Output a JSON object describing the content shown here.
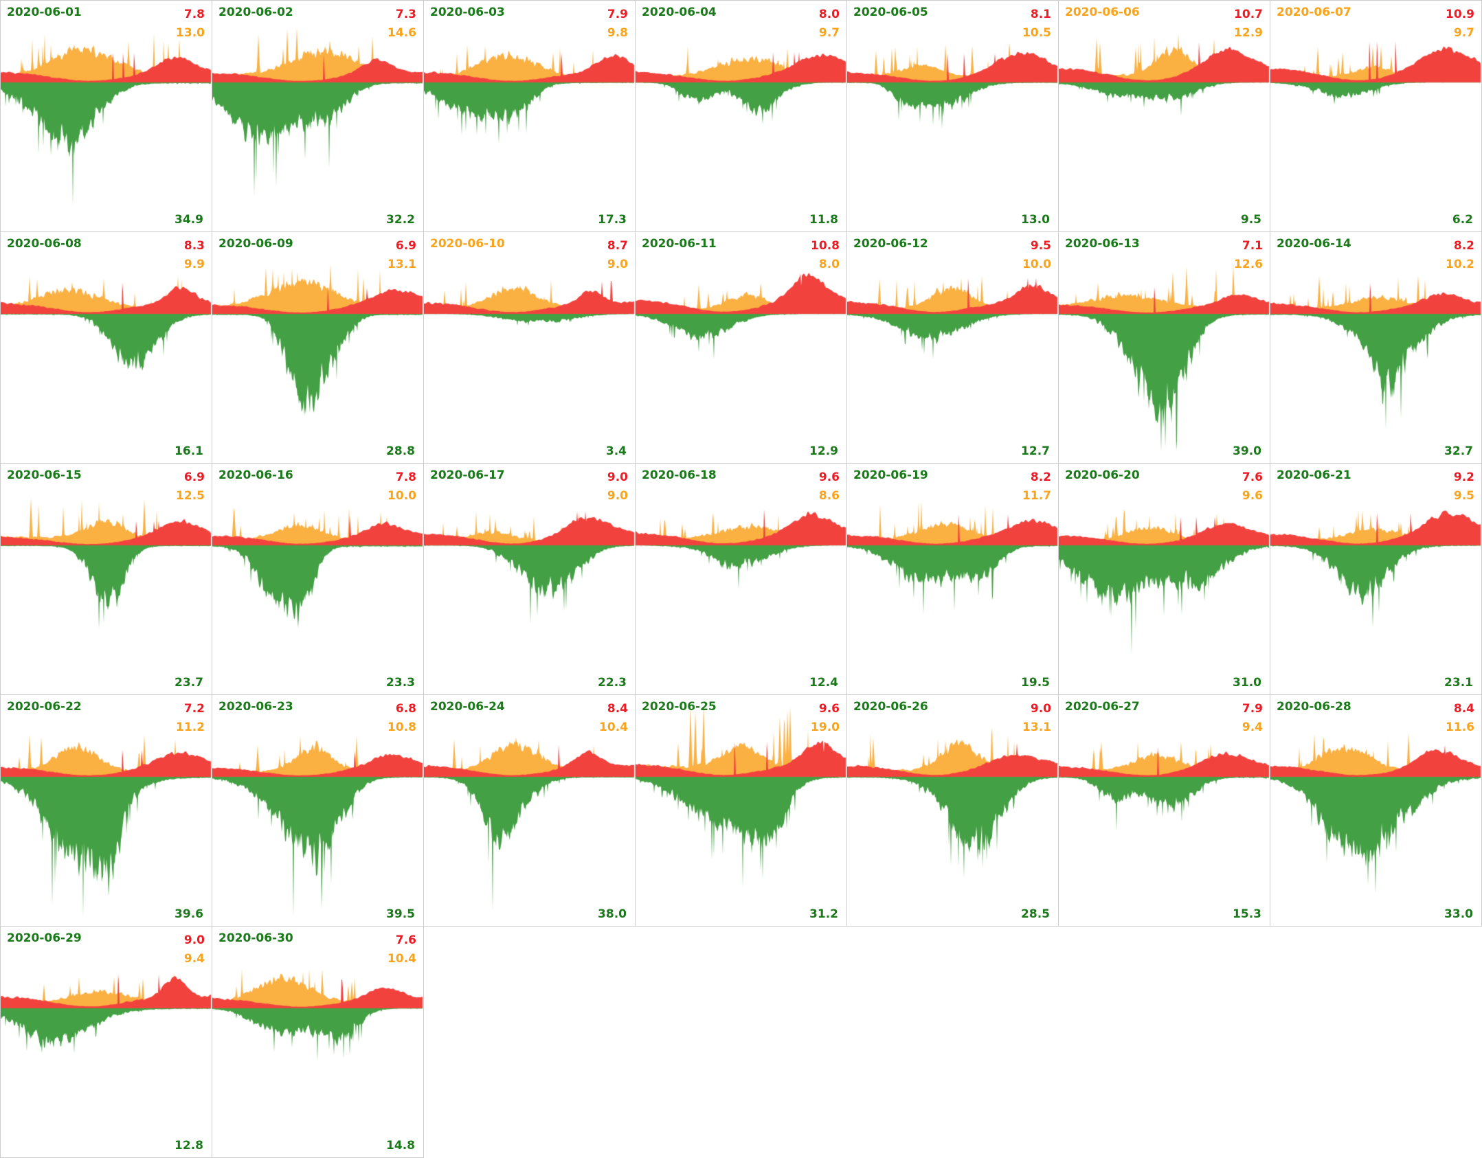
{
  "chart_data": {
    "type": "area",
    "title": "",
    "xlabel": "",
    "ylabel": "",
    "layout": {
      "columns": 7,
      "rows": 5,
      "axes_visible": false,
      "grid_visible": false,
      "baseline_fraction_from_top": 0.355
    },
    "colors": {
      "red_fill": "#f2423e",
      "orange_fill": "#fbb042",
      "green_fill": "#44a044",
      "red_text": "#ed1c24",
      "orange_text": "#f9a41c",
      "green_text": "#1a7a1a",
      "border": "#cccccc"
    },
    "series_meaning": {
      "red": "upper area series, daily max shown top-right line 1",
      "orange": "upper area series with spikes, daily max shown top-right line 2",
      "green": "lower (downward) area series, daily max shown bottom-right"
    },
    "panels": [
      {
        "date": "2020-06-01",
        "date_color": "green",
        "red_max": "7.8",
        "orange_max": "13.0",
        "green_max": "34.9"
      },
      {
        "date": "2020-06-02",
        "date_color": "green",
        "red_max": "7.3",
        "orange_max": "14.6",
        "green_max": "32.2"
      },
      {
        "date": "2020-06-03",
        "date_color": "green",
        "red_max": "7.9",
        "orange_max": "9.8",
        "green_max": "17.3"
      },
      {
        "date": "2020-06-04",
        "date_color": "green",
        "red_max": "8.0",
        "orange_max": "9.7",
        "green_max": "11.8"
      },
      {
        "date": "2020-06-05",
        "date_color": "green",
        "red_max": "8.1",
        "orange_max": "10.5",
        "green_max": "13.0"
      },
      {
        "date": "2020-06-06",
        "date_color": "orange",
        "red_max": "10.7",
        "orange_max": "12.9",
        "green_max": "9.5"
      },
      {
        "date": "2020-06-07",
        "date_color": "orange",
        "red_max": "10.9",
        "orange_max": "9.7",
        "green_max": "6.2"
      },
      {
        "date": "2020-06-08",
        "date_color": "green",
        "red_max": "8.3",
        "orange_max": "9.9",
        "green_max": "16.1"
      },
      {
        "date": "2020-06-09",
        "date_color": "green",
        "red_max": "6.9",
        "orange_max": "13.1",
        "green_max": "28.8"
      },
      {
        "date": "2020-06-10",
        "date_color": "orange",
        "red_max": "8.7",
        "orange_max": "9.0",
        "green_max": "3.4"
      },
      {
        "date": "2020-06-11",
        "date_color": "green",
        "red_max": "10.8",
        "orange_max": "8.0",
        "green_max": "12.9"
      },
      {
        "date": "2020-06-12",
        "date_color": "green",
        "red_max": "9.5",
        "orange_max": "10.0",
        "green_max": "12.7"
      },
      {
        "date": "2020-06-13",
        "date_color": "green",
        "red_max": "7.1",
        "orange_max": "12.6",
        "green_max": "39.0"
      },
      {
        "date": "2020-06-14",
        "date_color": "green",
        "red_max": "8.2",
        "orange_max": "10.2",
        "green_max": "32.7"
      },
      {
        "date": "2020-06-15",
        "date_color": "green",
        "red_max": "6.9",
        "orange_max": "12.5",
        "green_max": "23.7"
      },
      {
        "date": "2020-06-16",
        "date_color": "green",
        "red_max": "7.8",
        "orange_max": "10.0",
        "green_max": "23.3"
      },
      {
        "date": "2020-06-17",
        "date_color": "green",
        "red_max": "9.0",
        "orange_max": "9.0",
        "green_max": "22.3"
      },
      {
        "date": "2020-06-18",
        "date_color": "green",
        "red_max": "9.6",
        "orange_max": "8.6",
        "green_max": "12.4"
      },
      {
        "date": "2020-06-19",
        "date_color": "green",
        "red_max": "8.2",
        "orange_max": "11.7",
        "green_max": "19.5"
      },
      {
        "date": "2020-06-20",
        "date_color": "green",
        "red_max": "7.6",
        "orange_max": "9.6",
        "green_max": "31.0"
      },
      {
        "date": "2020-06-21",
        "date_color": "green",
        "red_max": "9.2",
        "orange_max": "9.5",
        "green_max": "23.1"
      },
      {
        "date": "2020-06-22",
        "date_color": "green",
        "red_max": "7.2",
        "orange_max": "11.2",
        "green_max": "39.6"
      },
      {
        "date": "2020-06-23",
        "date_color": "green",
        "red_max": "6.8",
        "orange_max": "10.8",
        "green_max": "39.5"
      },
      {
        "date": "2020-06-24",
        "date_color": "green",
        "red_max": "8.4",
        "orange_max": "10.4",
        "green_max": "38.0"
      },
      {
        "date": "2020-06-25",
        "date_color": "green",
        "red_max": "9.6",
        "orange_max": "19.0",
        "green_max": "31.2"
      },
      {
        "date": "2020-06-26",
        "date_color": "green",
        "red_max": "9.0",
        "orange_max": "13.1",
        "green_max": "28.5"
      },
      {
        "date": "2020-06-27",
        "date_color": "green",
        "red_max": "7.9",
        "orange_max": "9.4",
        "green_max": "15.3"
      },
      {
        "date": "2020-06-28",
        "date_color": "green",
        "red_max": "8.4",
        "orange_max": "11.6",
        "green_max": "33.0"
      },
      {
        "date": "2020-06-29",
        "date_color": "green",
        "red_max": "9.0",
        "orange_max": "9.4",
        "green_max": "12.8"
      },
      {
        "date": "2020-06-30",
        "date_color": "green",
        "red_max": "7.6",
        "orange_max": "10.4",
        "green_max": "14.8"
      }
    ]
  }
}
